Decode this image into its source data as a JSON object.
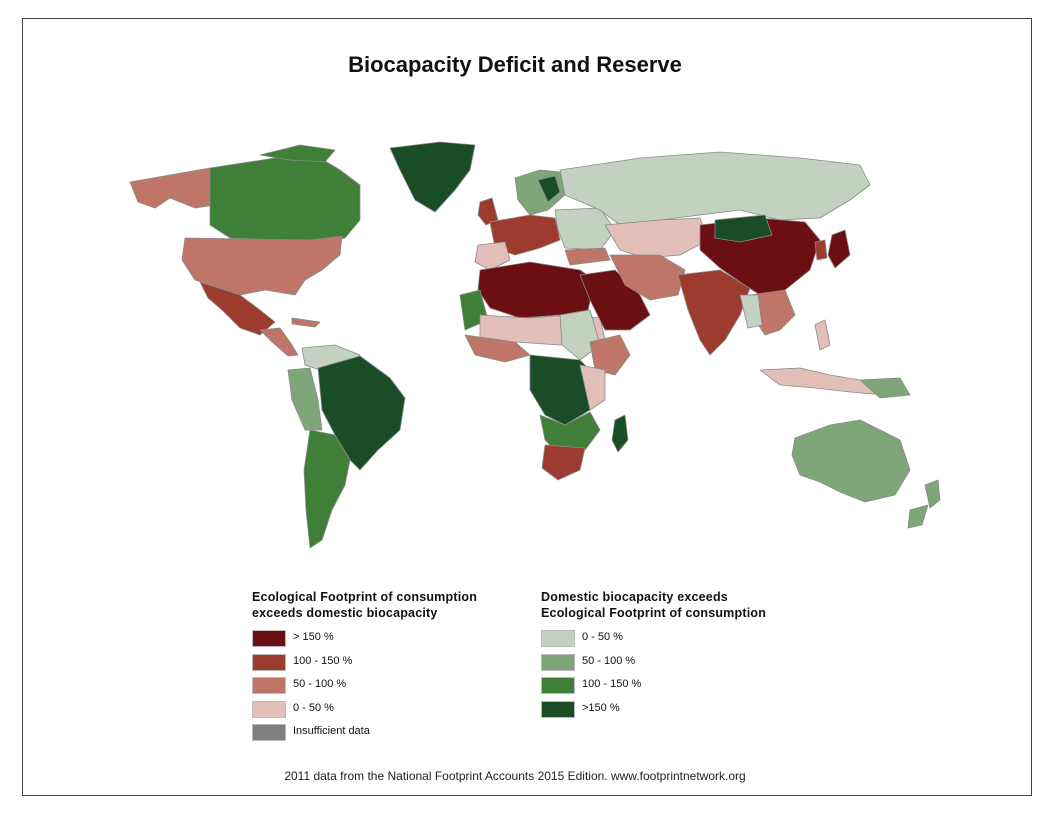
{
  "title": "Biocapacity Deficit and Reserve",
  "legend_deficit": {
    "heading": "Ecological Footprint of consumption\nexceeds domestic biocapacity",
    "items": [
      {
        "label": "> 150 %",
        "color": "#6b0f12"
      },
      {
        "label": "100 - 150 %",
        "color": "#9e3b2f"
      },
      {
        "label": "50 - 100 %",
        "color": "#bf7668"
      },
      {
        "label": "0 - 50 %",
        "color": "#e2bfb7"
      },
      {
        "label": "Insufficient data",
        "color": "#7f7f7f"
      }
    ]
  },
  "legend_reserve": {
    "heading": "Domestic biocapacity exceeds\nEcological Footprint of consumption",
    "items": [
      {
        "label": "0 - 50 %",
        "color": "#c3d1c1"
      },
      {
        "label": "50 - 100 %",
        "color": "#7fa678"
      },
      {
        "label": "100 - 150 %",
        "color": "#3f7f37"
      },
      {
        "label": ">150 %",
        "color": "#184d26"
      }
    ]
  },
  "source": "2011 data from the National Footprint Accounts 2015 Edition. www.footprintnetwork.org",
  "colors": {
    "ocean": "#ffffff",
    "border": "#8a8a8a"
  }
}
